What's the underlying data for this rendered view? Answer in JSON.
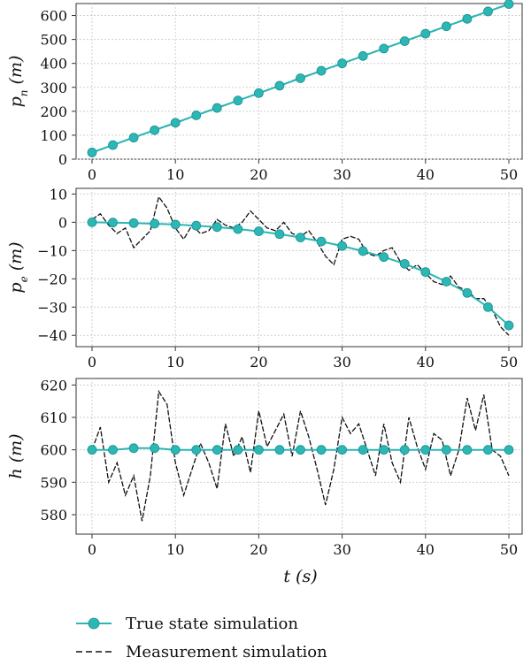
{
  "chart_data": [
    {
      "type": "line",
      "ylabel": "p_n (m)",
      "ylabel_parts": {
        "var": "p",
        "sub": "n",
        "unit": "(m)"
      },
      "xlim": [
        0,
        50
      ],
      "ylim": [
        0,
        650
      ],
      "xticks": [
        0,
        10,
        20,
        30,
        40,
        50
      ],
      "yticks": [
        0,
        100,
        200,
        300,
        400,
        500,
        600
      ],
      "grid": true,
      "series": [
        {
          "name": "True state simulation",
          "style": "line-marker",
          "x": [
            0,
            2.5,
            5,
            7.5,
            10,
            12.5,
            15,
            17.5,
            20,
            22.5,
            25,
            27.5,
            30,
            32.5,
            35,
            37.5,
            40,
            42.5,
            45,
            47.5,
            50
          ],
          "y": [
            28,
            59,
            90,
            121,
            152,
            183,
            214,
            245,
            276,
            307,
            338,
            369,
            400,
            431,
            462,
            493,
            524,
            555,
            586,
            617,
            648
          ]
        },
        {
          "name": "Measurement simulation",
          "style": "dashed",
          "x": [
            0,
            5,
            10,
            15,
            20,
            25,
            30,
            35,
            40,
            45,
            50
          ],
          "y": [
            26,
            92,
            150,
            216,
            274,
            340,
            398,
            464,
            522,
            588,
            646
          ]
        }
      ]
    },
    {
      "type": "line",
      "ylabel": "p_e (m)",
      "ylabel_parts": {
        "var": "p",
        "sub": "e",
        "unit": "(m)"
      },
      "xlim": [
        0,
        50
      ],
      "ylim": [
        -44,
        12
      ],
      "xticks": [
        0,
        10,
        20,
        30,
        40,
        50
      ],
      "yticks": [
        10,
        0,
        -10,
        -20,
        -30,
        -40
      ],
      "grid": true,
      "series": [
        {
          "name": "True state simulation",
          "style": "line-marker",
          "x": [
            0,
            2.5,
            5,
            7.5,
            10,
            12.5,
            15,
            17.5,
            20,
            22.5,
            25,
            27.5,
            30,
            32.5,
            35,
            37.5,
            40,
            42.5,
            45,
            47.5,
            50
          ],
          "y": [
            0,
            -0.1,
            -0.3,
            -0.5,
            -0.8,
            -1.2,
            -1.7,
            -2.4,
            -3.2,
            -4.2,
            -5.4,
            -6.8,
            -8.4,
            -10.2,
            -12.3,
            -14.7,
            -17.6,
            -21,
            -25,
            -30,
            -36.5
          ]
        },
        {
          "name": "Measurement simulation",
          "style": "dashed",
          "x": [
            0,
            1,
            2,
            3,
            4,
            5,
            6,
            7,
            8,
            9,
            10,
            11,
            12,
            13,
            14,
            15,
            16,
            17,
            18,
            19,
            20,
            21,
            22,
            23,
            24,
            25,
            26,
            27,
            28,
            29,
            30,
            31,
            32,
            33,
            34,
            35,
            36,
            37,
            38,
            39,
            40,
            41,
            42,
            43,
            44,
            45,
            46,
            47,
            48,
            49,
            50
          ],
          "y": [
            1,
            3,
            -1,
            -4,
            -2,
            -9,
            -6,
            -3,
            9,
            5,
            -2,
            -6,
            -1,
            -4,
            -3,
            1,
            -1,
            -2,
            0,
            4,
            1,
            -2,
            -3,
            0,
            -4,
            -5,
            -3,
            -7,
            -12,
            -15,
            -6,
            -5,
            -6,
            -11,
            -12,
            -10,
            -9,
            -14,
            -17,
            -15,
            -18,
            -21,
            -22,
            -19,
            -23,
            -24,
            -27,
            -27,
            -31,
            -37,
            -40
          ]
        }
      ]
    },
    {
      "type": "line",
      "xlabel": "t (s)",
      "xlabel_parts": {
        "var": "t",
        "unit": "(s)"
      },
      "ylabel": "h (m)",
      "ylabel_parts": {
        "var": "h",
        "unit": "(m)"
      },
      "xlim": [
        0,
        50
      ],
      "ylim": [
        574,
        622
      ],
      "xticks": [
        0,
        10,
        20,
        30,
        40,
        50
      ],
      "yticks": [
        620,
        610,
        600,
        590,
        580
      ],
      "grid": true,
      "series": [
        {
          "name": "True state simulation",
          "style": "line-marker",
          "x": [
            0,
            2.5,
            5,
            7.5,
            10,
            12.5,
            15,
            17.5,
            20,
            22.5,
            25,
            27.5,
            30,
            32.5,
            35,
            37.5,
            40,
            42.5,
            45,
            47.5,
            50
          ],
          "y": [
            600,
            600,
            600.5,
            600.5,
            600,
            600,
            600,
            600,
            600,
            600,
            600,
            600,
            600,
            600,
            600,
            600,
            600,
            600,
            600,
            600,
            600
          ]
        },
        {
          "name": "Measurement simulation",
          "style": "dashed",
          "x": [
            0,
            1,
            2,
            3,
            4,
            5,
            6,
            7,
            8,
            9,
            10,
            11,
            12,
            13,
            14,
            15,
            16,
            17,
            18,
            19,
            20,
            21,
            22,
            23,
            24,
            25,
            26,
            27,
            28,
            29,
            30,
            31,
            32,
            33,
            34,
            35,
            36,
            37,
            38,
            39,
            40,
            41,
            42,
            43,
            44,
            45,
            46,
            47,
            48,
            49,
            50
          ],
          "y": [
            600,
            607,
            590,
            596,
            586,
            592,
            578,
            592,
            618,
            614,
            596,
            586,
            594,
            602,
            596,
            588,
            608,
            598,
            604,
            593,
            612,
            601,
            606,
            611,
            598,
            612,
            604,
            594,
            583,
            594,
            610,
            605,
            608,
            600,
            592,
            608,
            596,
            590,
            610,
            601,
            594,
            605,
            603,
            592,
            600,
            616,
            606,
            617,
            600,
            598,
            592
          ]
        }
      ]
    }
  ],
  "legend": {
    "placement": "bottom",
    "entries": [
      {
        "label": "True state simulation",
        "style": "line-marker",
        "color": "#2ab7b5"
      },
      {
        "label": "Measurement simulation",
        "style": "dashed",
        "color": "#111111"
      }
    ]
  },
  "colors": {
    "true_state": "#2ab7b5",
    "true_state_edge": "#1d8f8d",
    "measurement": "#111111",
    "grid": "#cfcfcf"
  }
}
